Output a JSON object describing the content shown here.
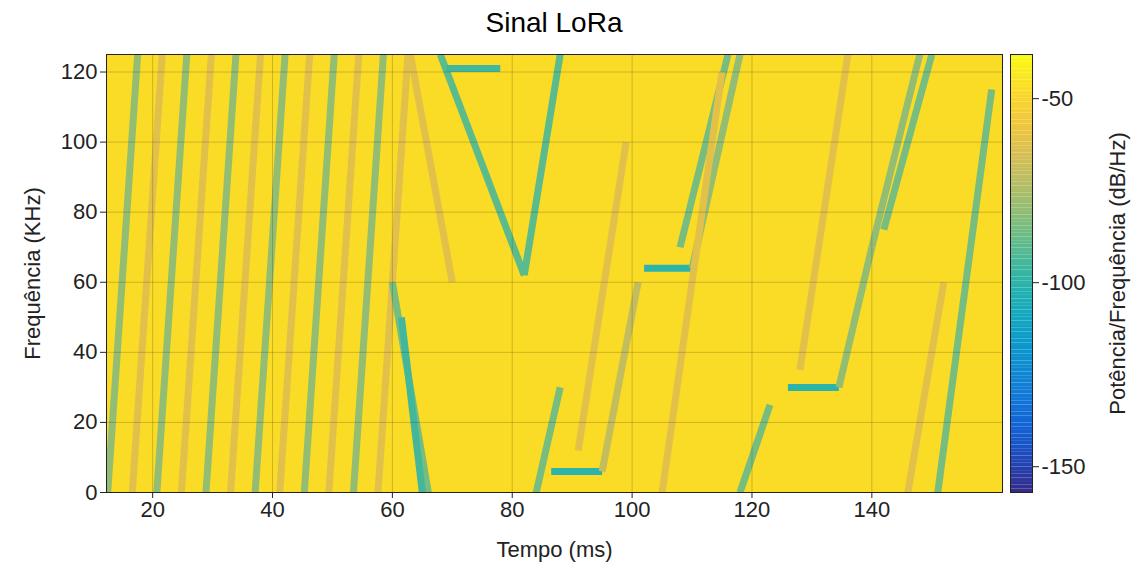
{
  "chart_data": {
    "type": "spectrogram",
    "title": "Sinal LoRa",
    "x_label": "Tempo (ms)",
    "y_label": "Frequência (KHz)",
    "xlim": [
      12.3,
      161.8
    ],
    "xticks": [
      20,
      40,
      60,
      80,
      100,
      120,
      140
    ],
    "ylim": [
      0,
      125
    ],
    "yticks": [
      0,
      20,
      40,
      60,
      80,
      100,
      120
    ],
    "grid": true,
    "background": -48,
    "segments": [
      {
        "t": [
          12.5,
          17.5
        ],
        "f": [
          0,
          125
        ],
        "value": -80
      },
      {
        "t": [
          16.6,
          21.6
        ],
        "f": [
          0,
          125
        ],
        "value": -62
      },
      {
        "t": [
          20.7,
          25.7
        ],
        "f": [
          0,
          125
        ],
        "value": -80
      },
      {
        "t": [
          24.8,
          29.8
        ],
        "f": [
          0,
          125
        ],
        "value": -62
      },
      {
        "t": [
          28.9,
          33.9
        ],
        "f": [
          0,
          125
        ],
        "value": -80
      },
      {
        "t": [
          33.0,
          38.0
        ],
        "f": [
          0,
          125
        ],
        "value": -62
      },
      {
        "t": [
          37.1,
          42.1
        ],
        "f": [
          0,
          125
        ],
        "value": -80
      },
      {
        "t": [
          41.2,
          46.2
        ],
        "f": [
          0,
          125
        ],
        "value": -62
      },
      {
        "t": [
          45.3,
          50.3
        ],
        "f": [
          0,
          125
        ],
        "value": -80
      },
      {
        "t": [
          49.4,
          54.4
        ],
        "f": [
          0,
          125
        ],
        "value": -62
      },
      {
        "t": [
          53.5,
          58.5
        ],
        "f": [
          0,
          125
        ],
        "value": -80
      },
      {
        "t": [
          57.6,
          62.6
        ],
        "f": [
          0,
          125
        ],
        "value": -62
      },
      {
        "t": [
          60,
          66
        ],
        "f": [
          60,
          0
        ],
        "value": -85
      },
      {
        "t": [
          61.5,
          65
        ],
        "f": [
          50,
          0
        ],
        "value": -95
      },
      {
        "t": [
          63,
          70
        ],
        "f": [
          125,
          60
        ],
        "value": -62
      },
      {
        "t": [
          68,
          82
        ],
        "f": [
          125,
          62
        ],
        "value": -90
      },
      {
        "t": [
          82,
          88
        ],
        "f": [
          62,
          125
        ],
        "value": -90
      },
      {
        "t": [
          69,
          78
        ],
        "f": [
          121,
          121
        ],
        "value": -95
      },
      {
        "t": [
          84,
          88
        ],
        "f": [
          0,
          30
        ],
        "value": -85
      },
      {
        "t": [
          86.5,
          95
        ],
        "f": [
          6,
          6
        ],
        "value": -100
      },
      {
        "t": [
          95,
          101
        ],
        "f": [
          6,
          60
        ],
        "value": -70
      },
      {
        "t": [
          91,
          99
        ],
        "f": [
          12,
          100
        ],
        "value": -62
      },
      {
        "t": [
          102,
          110
        ],
        "f": [
          64,
          64
        ],
        "value": -100
      },
      {
        "t": [
          110,
          118
        ],
        "f": [
          64,
          125
        ],
        "value": -80
      },
      {
        "t": [
          108,
          116
        ],
        "f": [
          70,
          125
        ],
        "value": -85
      },
      {
        "t": [
          105,
          115
        ],
        "f": [
          0,
          120
        ],
        "value": -62
      },
      {
        "t": [
          118,
          123
        ],
        "f": [
          0,
          25
        ],
        "value": -85
      },
      {
        "t": [
          126,
          134.5
        ],
        "f": [
          30,
          30
        ],
        "value": -100
      },
      {
        "t": [
          134.5,
          140
        ],
        "f": [
          30,
          70
        ],
        "value": -80
      },
      {
        "t": [
          140,
          148
        ],
        "f": [
          70,
          125
        ],
        "value": -80
      },
      {
        "t": [
          142,
          150
        ],
        "f": [
          75,
          125
        ],
        "value": -85
      },
      {
        "t": [
          128,
          136
        ],
        "f": [
          35,
          125
        ],
        "value": -62
      },
      {
        "t": [
          146,
          152
        ],
        "f": [
          0,
          60
        ],
        "value": -62
      },
      {
        "t": [
          151,
          160
        ],
        "f": [
          0,
          115
        ],
        "value": -85
      }
    ],
    "colorbar": {
      "label": "Potência/Frequência (dB/Hz)",
      "lim": [
        -157,
        -38
      ],
      "ticks": [
        -150,
        -100,
        -50
      ]
    }
  }
}
